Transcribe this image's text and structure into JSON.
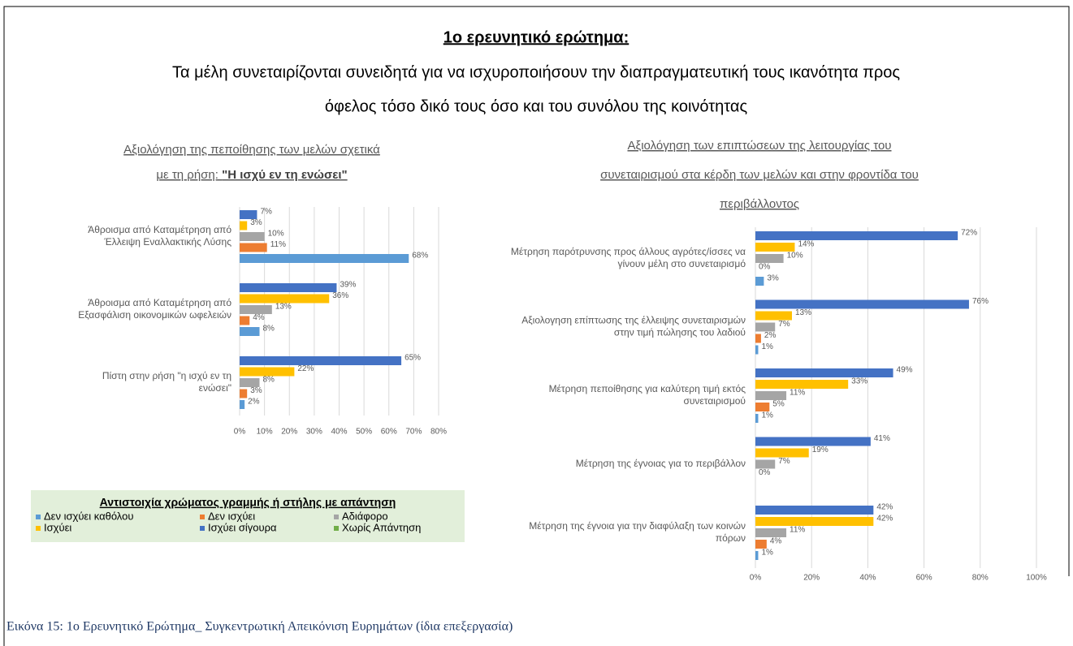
{
  "header": {
    "title": "1ο ερευνητικό ερώτημα:",
    "subtitle": [
      "Τα μέλη συνεταιρίζονται συνειδητά για να ισχυροποιήσουν την διαπραγματευτική τους ικανότητα προς",
      "όφελος τόσο δικό τους όσο και του συνόλου της κοινότητας"
    ]
  },
  "legend": {
    "title": "Αντιστοιχία χρώματος γραμμής ή στήλης με απάντηση",
    "items": [
      {
        "name": "Δεν ισχύει καθόλου",
        "color": "#5b9bd5"
      },
      {
        "name": "Δεν ισχύει",
        "color": "#ed7d31"
      },
      {
        "name": "Αδιάφορο",
        "color": "#a5a5a5"
      },
      {
        "name": "Ισχύει",
        "color": "#ffc000"
      },
      {
        "name": "Ισχύει σίγουρα",
        "color": "#4472c4"
      },
      {
        "name": "Χωρίς Απάντηση",
        "color": "#70ad47"
      }
    ]
  },
  "chart_data": [
    {
      "type": "barh",
      "title": [
        "Αξιολόγηση της πεποίθησης των μελών σχετικά",
        "με τη ρήση: "
      ],
      "title_quote": "\"Η ισχύ εν τη ενώσει\"",
      "categories": [
        [
          "Άθροισμα από Καταμέτρηση από",
          "Έλλειψη Εναλλακτικής Λύσης"
        ],
        [
          "Άθροισμα από Καταμέτρηση από",
          "Εξασφάλιση οικονομικών ωφελειών"
        ],
        [
          "Πίστη στην ρήση \"η ισχύ εν τη",
          "ενώσει\""
        ]
      ],
      "series": [
        {
          "values": [
            68,
            8,
            2
          ],
          "value_labels": [
            "68%",
            "8%",
            "2%"
          ]
        },
        {
          "values": [
            11,
            4,
            3
          ],
          "value_labels": [
            "11%",
            "4%",
            "3%"
          ]
        },
        {
          "values": [
            10,
            13,
            8
          ],
          "value_labels": [
            "10%",
            "13%",
            "8%"
          ]
        },
        {
          "values": [
            3,
            36,
            22
          ],
          "value_labels": [
            "3%",
            "36%",
            "22%"
          ]
        },
        {
          "values": [
            7,
            39,
            65
          ],
          "value_labels": [
            "7%",
            "39%",
            "65%"
          ]
        }
      ],
      "xlim": [
        0,
        80
      ],
      "xticks": [
        {
          "value": 0,
          "label": "0%"
        },
        {
          "value": 10,
          "label": "10%"
        },
        {
          "value": 20,
          "label": "20%"
        },
        {
          "value": 30,
          "label": "30%"
        },
        {
          "value": 40,
          "label": "40%"
        },
        {
          "value": 50,
          "label": "50%"
        },
        {
          "value": 60,
          "label": "60%"
        },
        {
          "value": 70,
          "label": "70%"
        },
        {
          "value": 80,
          "label": "80%"
        }
      ],
      "grid": true
    },
    {
      "type": "barh",
      "title": [
        "Αξιολόγηση  των επιπτώσεων  της λειτουργίας  του",
        "συνεταιρισμού  στα κέρδη των μελών και στην φροντίδα του",
        "περιβάλλοντος"
      ],
      "categories": [
        [
          "Μέτρηση παρότρυνσης προς άλλους αγρότες/ίσσες να",
          "γίνουν μέλη στο συνεταιρισμό"
        ],
        [
          "Αξιολογηση επίπτωσης της έλλειψης συνεταιρισμών",
          "στην τιμή πώλησης του λαδιού"
        ],
        [
          "Μέτρηση πεποίθησης για καλύτερη τιμή εκτός",
          "συνεταιρισμού"
        ],
        [
          "Μέτρηση της έγνοιας για το περιβάλλον"
        ],
        [
          "Μέτρηση της έγνοια για την διαφύλαξη των κοινών",
          "πόρων"
        ]
      ],
      "series": [
        {
          "values": [
            3,
            1,
            1,
            null,
            1
          ],
          "value_labels": [
            "3%",
            "1%",
            "1%",
            null,
            "1%"
          ]
        },
        {
          "values": [
            0,
            2,
            5,
            0,
            4
          ],
          "value_labels": [
            "0%",
            "2%",
            "5%",
            "0%",
            "4%"
          ]
        },
        {
          "values": [
            10,
            7,
            11,
            7,
            11
          ],
          "value_labels": [
            "10%",
            "7%",
            "11%",
            "7%",
            "11%"
          ]
        },
        {
          "values": [
            14,
            13,
            33,
            19,
            42
          ],
          "value_labels": [
            "14%",
            "13%",
            "33%",
            "19%",
            "42%"
          ]
        },
        {
          "values": [
            72,
            76,
            49,
            41,
            42
          ],
          "value_labels": [
            "72%",
            "76%",
            "49%",
            "41%",
            "42%"
          ]
        }
      ],
      "group_top": [
        33
      ],
      "xlim": [
        0,
        100
      ],
      "xticks": [
        {
          "value": 0,
          "label": "0%"
        },
        {
          "value": 20,
          "label": "20%"
        },
        {
          "value": 40,
          "label": "40%"
        },
        {
          "value": 60,
          "label": "60%"
        },
        {
          "value": 80,
          "label": "80%"
        },
        {
          "value": 100,
          "label": "100%"
        }
      ],
      "grid": true
    }
  ],
  "caption": "Εικόνα 15: 1ο Ερευνητικό Ερώτημα_ Συγκεντρωτική Απεικόνιση Ευρημάτων (ίδια επεξεργασία)"
}
